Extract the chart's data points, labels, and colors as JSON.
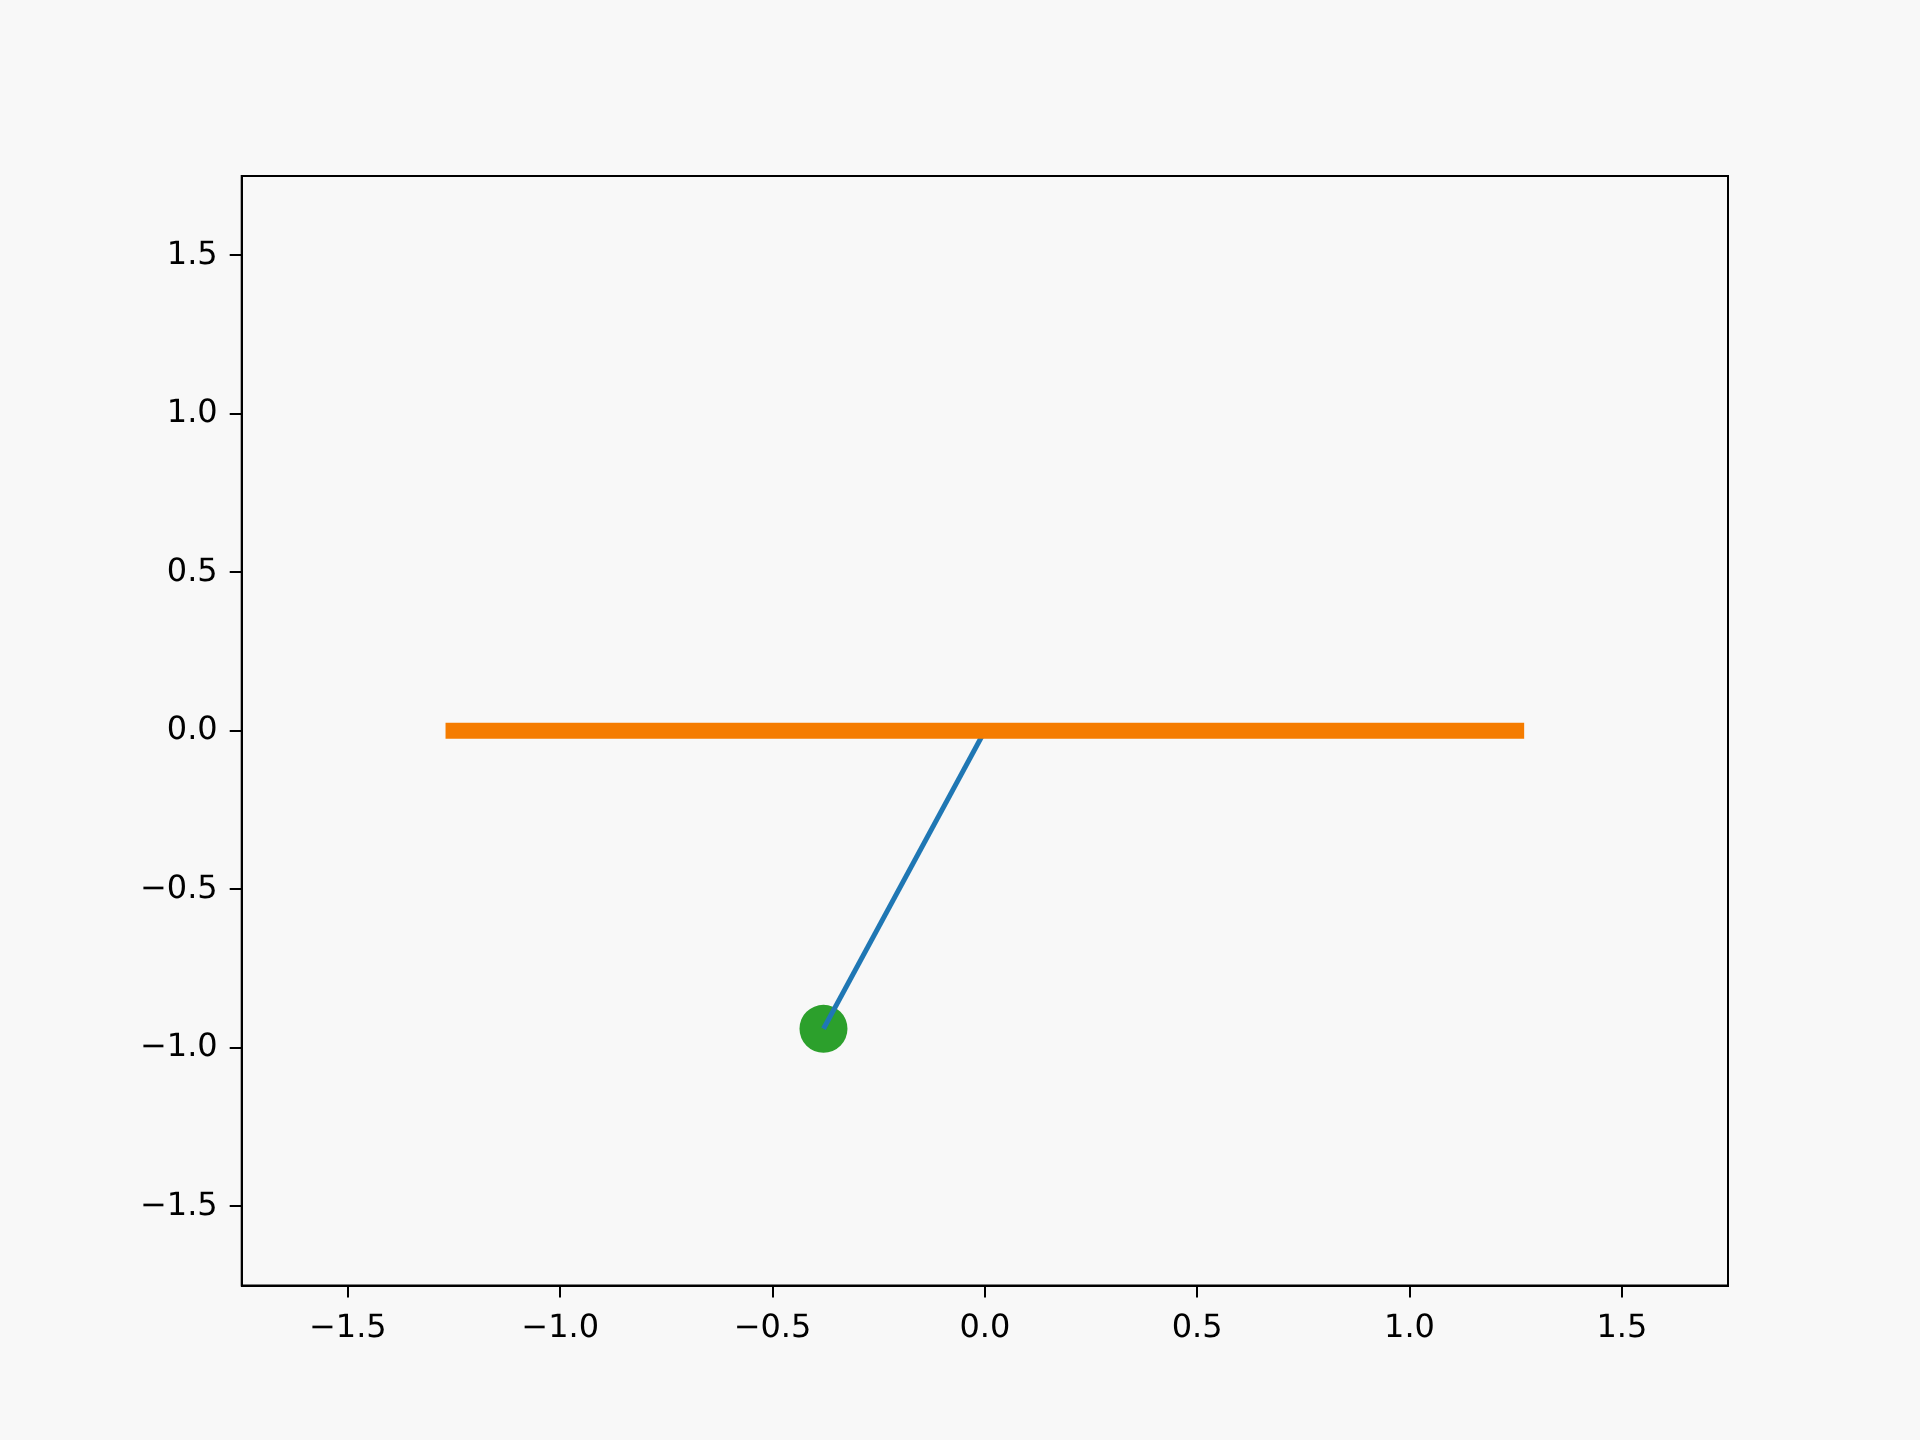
{
  "chart_data": {
    "type": "line",
    "series": [
      {
        "color": "#f57c00",
        "x": [
          -1.27,
          1.27
        ],
        "values": [
          0,
          0
        ],
        "marker": "none"
      },
      {
        "color": "#1f77b4",
        "x": [
          0,
          -0.38
        ],
        "values": [
          0,
          -0.94
        ],
        "marker": "none"
      },
      {
        "type": "scatter",
        "color": "#2ca02c",
        "x": [
          -0.38
        ],
        "values": [
          -0.94
        ],
        "marker": "circle"
      }
    ],
    "xlim": [
      -1.75,
      1.75
    ],
    "ylim": [
      -1.75,
      1.75
    ],
    "xticks": [
      {
        "value": -1.5,
        "label": "−1.5"
      },
      {
        "value": -1.0,
        "label": "−1.0"
      },
      {
        "value": -0.5,
        "label": "−0.5"
      },
      {
        "value": 0,
        "label": "0.0"
      },
      {
        "value": 0.5,
        "label": "0.5"
      },
      {
        "value": 1.0,
        "label": "1.0"
      },
      {
        "value": 1.5,
        "label": "1.5"
      }
    ],
    "yticks": [
      {
        "value": -1.5,
        "label": "−1.5"
      },
      {
        "value": -1.0,
        "label": "−1.0"
      },
      {
        "value": -0.5,
        "label": "−0.5"
      },
      {
        "value": 0,
        "label": "0.0"
      },
      {
        "value": 0.5,
        "label": "0.5"
      },
      {
        "value": 1.0,
        "label": "1.0"
      },
      {
        "value": 1.5,
        "label": "1.5"
      }
    ],
    "grid": false,
    "legend": false
  }
}
